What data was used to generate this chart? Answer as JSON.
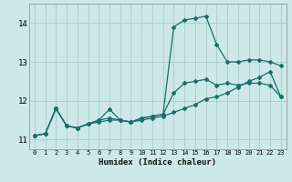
{
  "xlabel": "Humidex (Indice chaleur)",
  "bg_color": "#cce8e8",
  "grid_color": "#aacccc",
  "line_color": "#1a6e6a",
  "xlim": [
    -0.5,
    23.5
  ],
  "ylim": [
    10.75,
    14.5
  ],
  "yticks": [
    11,
    12,
    13,
    14
  ],
  "xticks": [
    0,
    1,
    2,
    3,
    4,
    5,
    6,
    7,
    8,
    9,
    10,
    11,
    12,
    13,
    14,
    15,
    16,
    17,
    18,
    19,
    20,
    21,
    22,
    23
  ],
  "series1_x": [
    0,
    1,
    2,
    3,
    4,
    5,
    6,
    7,
    8,
    9,
    10,
    11,
    12,
    13,
    14,
    15,
    16,
    17,
    18,
    19,
    20,
    21,
    22,
    23
  ],
  "series1_y": [
    11.1,
    11.15,
    11.8,
    11.35,
    11.3,
    11.4,
    11.45,
    11.5,
    11.5,
    11.45,
    11.5,
    11.55,
    11.6,
    11.7,
    11.8,
    11.9,
    12.05,
    12.1,
    12.2,
    12.35,
    12.5,
    12.6,
    12.75,
    12.1
  ],
  "series2_x": [
    0,
    1,
    2,
    3,
    4,
    5,
    6,
    7,
    8,
    9,
    10,
    11,
    12,
    13,
    14,
    15,
    16,
    17,
    18,
    19,
    20,
    21,
    22,
    23
  ],
  "series2_y": [
    11.1,
    11.15,
    11.8,
    11.35,
    11.3,
    11.4,
    11.5,
    11.55,
    11.5,
    11.45,
    11.55,
    11.6,
    11.65,
    12.2,
    12.45,
    12.5,
    12.55,
    12.4,
    12.45,
    12.4,
    12.45,
    12.45,
    12.4,
    12.1
  ],
  "series3_x": [
    0,
    1,
    2,
    3,
    4,
    5,
    6,
    7,
    8,
    9,
    10,
    11,
    12,
    13,
    14,
    15,
    16,
    17,
    18,
    19,
    20,
    21,
    22,
    23
  ],
  "series3_y": [
    11.1,
    11.15,
    11.8,
    11.35,
    11.3,
    11.4,
    11.5,
    11.78,
    11.5,
    11.45,
    11.55,
    11.6,
    11.65,
    13.9,
    14.08,
    14.12,
    14.18,
    13.45,
    13.0,
    13.0,
    13.05,
    13.05,
    13.0,
    12.9
  ]
}
